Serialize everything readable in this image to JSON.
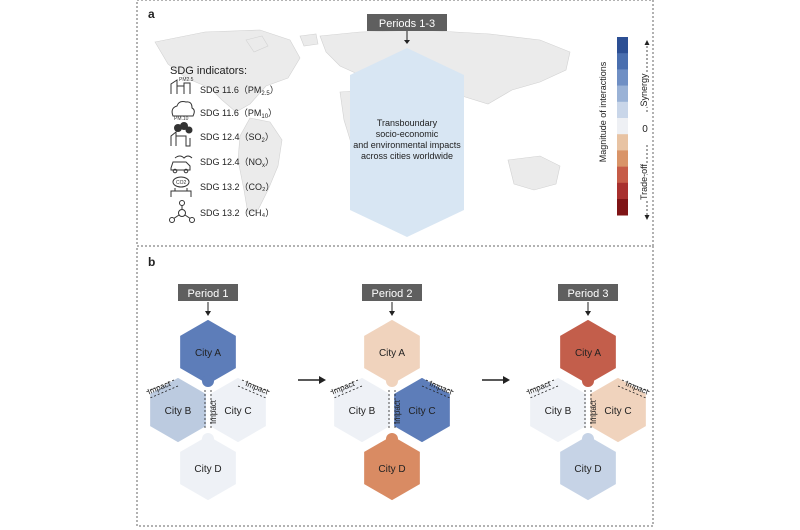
{
  "panel_a": {
    "label": "a",
    "periods_header": "Periods 1-3",
    "center_text": [
      "Transboundary",
      "socio-economic",
      "and environmental impacts",
      "across cities worldwide"
    ],
    "indicators_title": "SDG indicators:",
    "indicators": [
      {
        "icon": "pm25-icon",
        "icon_text": "PM2.5",
        "label": "SDG 11.6（PM",
        "sub": "2.5",
        "tail": "）"
      },
      {
        "icon": "pm10-cloud-icon",
        "icon_text": "PM.10",
        "label": "SDG 11.6（PM",
        "sub": "10",
        "tail": "）"
      },
      {
        "icon": "so2-factory-icon",
        "icon_text": "",
        "label": "SDG 12.4（SO",
        "sub": "2",
        "tail": "）"
      },
      {
        "icon": "nox-car-icon",
        "icon_text": "",
        "label": "SDG 12.4（NO",
        "sub": "x",
        "tail": "）"
      },
      {
        "icon": "co2-factory-icon",
        "icon_text": "CO2",
        "label": "SDG 13.2（CO₂）",
        "sub": "",
        "tail": ""
      },
      {
        "icon": "ch4-molecule-icon",
        "icon_text": "",
        "label": "SDG 13.2（CH₄）",
        "sub": "",
        "tail": ""
      }
    ],
    "colorbar": {
      "axis_label": "Magnitude of interactions",
      "zero_label": "0",
      "synergy_label": "Synergy",
      "tradeoff_label": "Trade-off",
      "colors": [
        "#2c4f94",
        "#4a6faf",
        "#6f8fc4",
        "#9ab2d6",
        "#c9d6e9",
        "#eef0f4",
        "#e8c3a3",
        "#d99468",
        "#c65c47",
        "#a8302e",
        "#7f1416"
      ]
    }
  },
  "panel_b": {
    "label": "b",
    "impact_label": "Impact",
    "periods": [
      {
        "title": "Period 1",
        "cities": {
          "a": "#5d7db9",
          "b": "#bccbe0",
          "c": "#eef1f6",
          "d": "#eef1f6"
        },
        "names": [
          "City A",
          "City B",
          "City C",
          "City D"
        ]
      },
      {
        "title": "Period 2",
        "cities": {
          "a": "#f0d3bd",
          "b": "#eef1f6",
          "c": "#5d7db9",
          "d": "#d98b63"
        },
        "names": [
          "City A",
          "City B",
          "City C",
          "City D"
        ]
      },
      {
        "title": "Period 3",
        "cities": {
          "a": "#c35e4b",
          "b": "#eef1f6",
          "c": "#f0d3bd",
          "d": "#c6d3e6"
        },
        "names": [
          "City A",
          "City B",
          "City C",
          "City D"
        ]
      }
    ]
  },
  "colors": {
    "header_box": "#5f5f5f",
    "hex_light_blue": "#d6e4f2",
    "map_land": "#ececec",
    "border": "#555555"
  }
}
